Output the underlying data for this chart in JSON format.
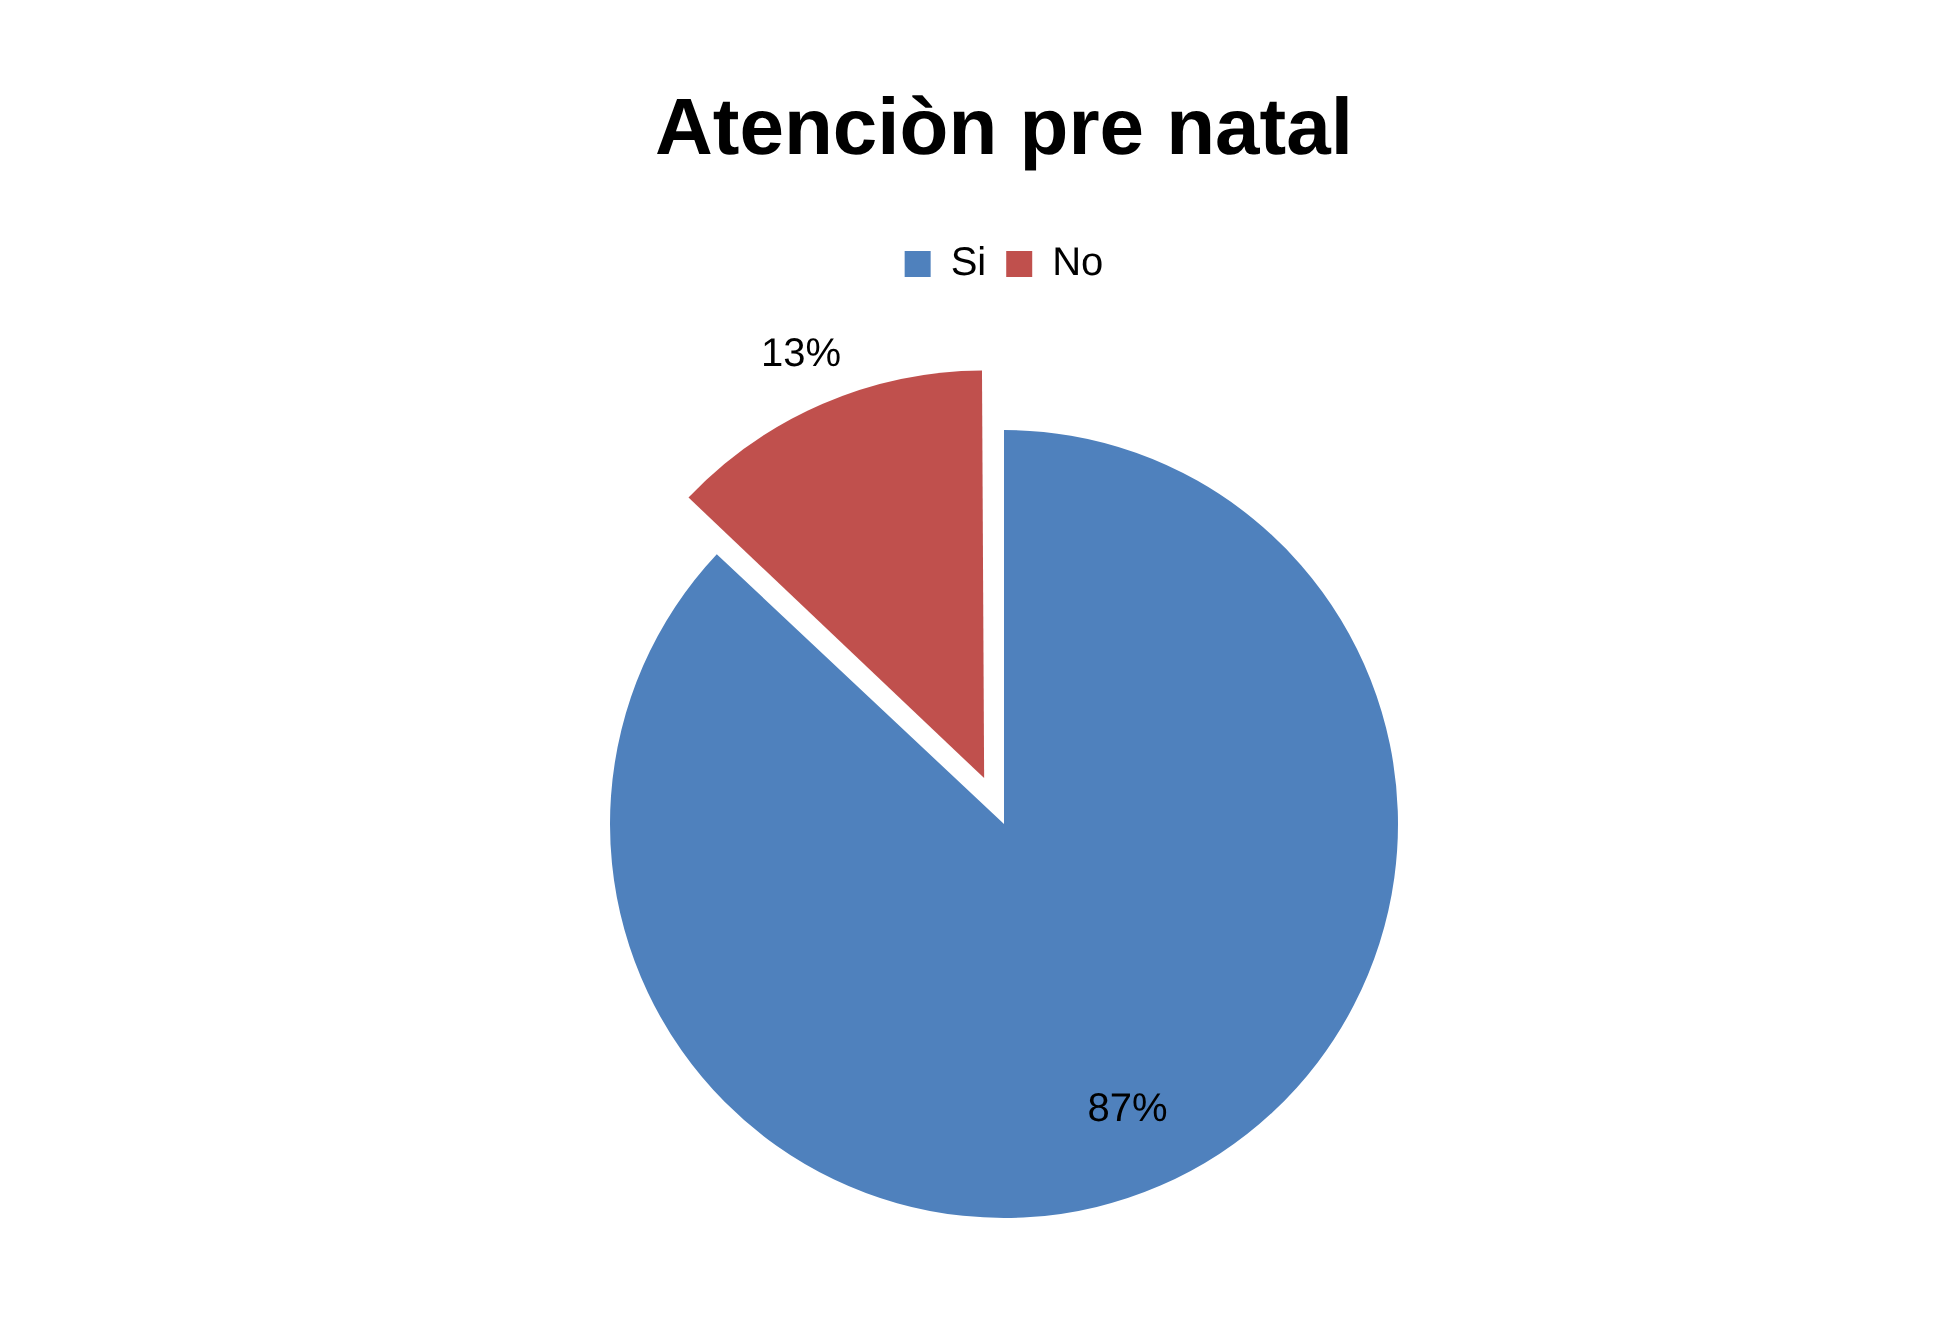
{
  "chart_data": {
    "type": "pie",
    "title": "Atenciòn pre natal",
    "categories": [
      "Si",
      "No"
    ],
    "values": [
      87,
      13
    ],
    "value_labels": [
      "87%",
      "13%"
    ],
    "colors": [
      "#4f81bd",
      "#c0504d"
    ],
    "legend": "top"
  }
}
